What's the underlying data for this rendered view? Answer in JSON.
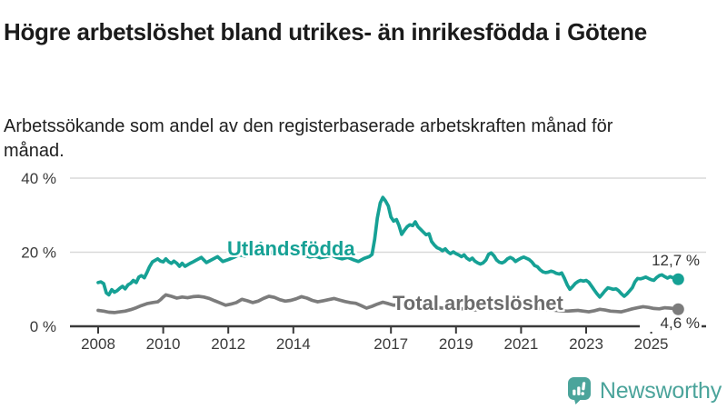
{
  "header": {
    "title": "Högre arbetslöshet bland utrikes- än inrikesfödda i Götene",
    "subtitle": "Arbetssökande som andel av den registerbaserade arbetskraften månad för månad."
  },
  "footer": {
    "brand": "Newsworthy",
    "logo_icon": "newsworthy-speech-bubble-bar-chart-icon",
    "brand_color": "#4ba49b"
  },
  "chart_data": {
    "type": "line",
    "title": "Högre arbetslöshet bland utrikes- än inrikesfödda i Götene",
    "subtitle": "Arbetssökande som andel av den registerbaserade arbetskraften månad för månad.",
    "grid": "horizontal-only",
    "legend_position": "inline-labels-on-lines",
    "x_axis": {
      "tick_years": [
        2008,
        2010,
        2012,
        2014,
        2017,
        2019,
        2021,
        2023,
        2025
      ],
      "tick_labels": [
        "2008",
        "2010",
        "2012",
        "2014",
        "2017",
        "2019",
        "2021",
        "2023",
        "2025"
      ],
      "range": [
        2007.15,
        2026.7
      ]
    },
    "y_axis": {
      "ticks": [
        0,
        20,
        40
      ],
      "tick_labels": [
        "0 %",
        "20 %",
        "40 %"
      ],
      "range": [
        0,
        40
      ],
      "unit": "%"
    },
    "series": [
      {
        "name": "Utlandsfödda",
        "color": "#16a195",
        "end_label": "12,7 %",
        "end_value": 12.7,
        "points": [
          [
            2008.0,
            11.8
          ],
          [
            2008.08,
            12.0
          ],
          [
            2008.17,
            11.5
          ],
          [
            2008.25,
            9.0
          ],
          [
            2008.33,
            8.5
          ],
          [
            2008.42,
            9.9
          ],
          [
            2008.5,
            9.2
          ],
          [
            2008.58,
            9.6
          ],
          [
            2008.67,
            10.3
          ],
          [
            2008.75,
            10.8
          ],
          [
            2008.83,
            10.1
          ],
          [
            2008.92,
            11.2
          ],
          [
            2009.0,
            11.6
          ],
          [
            2009.08,
            12.4
          ],
          [
            2009.17,
            11.8
          ],
          [
            2009.25,
            13.3
          ],
          [
            2009.33,
            13.7
          ],
          [
            2009.42,
            13.1
          ],
          [
            2009.5,
            14.5
          ],
          [
            2009.58,
            16.1
          ],
          [
            2009.67,
            17.4
          ],
          [
            2009.75,
            17.8
          ],
          [
            2009.83,
            18.2
          ],
          [
            2009.92,
            17.6
          ],
          [
            2010.0,
            17.4
          ],
          [
            2010.08,
            18.2
          ],
          [
            2010.17,
            17.4
          ],
          [
            2010.25,
            17.0
          ],
          [
            2010.33,
            17.6
          ],
          [
            2010.42,
            17.0
          ],
          [
            2010.5,
            16.2
          ],
          [
            2010.58,
            17.0
          ],
          [
            2010.67,
            16.2
          ],
          [
            2010.75,
            16.6
          ],
          [
            2010.83,
            17.0
          ],
          [
            2010.92,
            17.4
          ],
          [
            2011.0,
            17.8
          ],
          [
            2011.17,
            18.6
          ],
          [
            2011.33,
            17.2
          ],
          [
            2011.5,
            18.0
          ],
          [
            2011.67,
            18.8
          ],
          [
            2011.83,
            17.5
          ],
          [
            2012.0,
            18.0
          ],
          [
            2012.17,
            18.6
          ],
          [
            2012.33,
            19.3
          ],
          [
            2012.5,
            19.0
          ],
          [
            2012.67,
            19.4
          ],
          [
            2012.83,
            20.4
          ],
          [
            2013.0,
            22.4
          ],
          [
            2013.17,
            20.8
          ],
          [
            2013.33,
            19.8
          ],
          [
            2013.5,
            19.3
          ],
          [
            2013.67,
            19.6
          ],
          [
            2013.83,
            19.1
          ],
          [
            2014.0,
            19.4
          ],
          [
            2014.17,
            19.8
          ],
          [
            2014.33,
            19.2
          ],
          [
            2014.5,
            18.7
          ],
          [
            2014.67,
            19.0
          ],
          [
            2014.83,
            18.5
          ],
          [
            2015.0,
            18.8
          ],
          [
            2015.17,
            19.2
          ],
          [
            2015.33,
            18.6
          ],
          [
            2015.5,
            18.2
          ],
          [
            2015.67,
            18.6
          ],
          [
            2015.83,
            18.0
          ],
          [
            2016.0,
            17.5
          ],
          [
            2016.17,
            18.3
          ],
          [
            2016.33,
            18.8
          ],
          [
            2016.42,
            19.4
          ],
          [
            2016.5,
            23.5
          ],
          [
            2016.58,
            29.2
          ],
          [
            2016.67,
            33.3
          ],
          [
            2016.75,
            34.8
          ],
          [
            2016.83,
            33.9
          ],
          [
            2016.92,
            32.5
          ],
          [
            2017.0,
            29.5
          ],
          [
            2017.08,
            28.4
          ],
          [
            2017.17,
            28.8
          ],
          [
            2017.25,
            27.2
          ],
          [
            2017.33,
            24.8
          ],
          [
            2017.42,
            26.0
          ],
          [
            2017.5,
            26.9
          ],
          [
            2017.58,
            27.4
          ],
          [
            2017.67,
            27.2
          ],
          [
            2017.75,
            28.2
          ],
          [
            2017.83,
            26.9
          ],
          [
            2017.92,
            26.1
          ],
          [
            2018.0,
            25.4
          ],
          [
            2018.08,
            24.7
          ],
          [
            2018.17,
            25.0
          ],
          [
            2018.25,
            22.9
          ],
          [
            2018.33,
            22.0
          ],
          [
            2018.42,
            21.2
          ],
          [
            2018.5,
            20.9
          ],
          [
            2018.58,
            20.4
          ],
          [
            2018.67,
            20.9
          ],
          [
            2018.75,
            20.1
          ],
          [
            2018.83,
            19.6
          ],
          [
            2018.92,
            20.1
          ],
          [
            2019.0,
            19.6
          ],
          [
            2019.08,
            19.3
          ],
          [
            2019.17,
            18.8
          ],
          [
            2019.25,
            19.3
          ],
          [
            2019.33,
            18.4
          ],
          [
            2019.42,
            17.9
          ],
          [
            2019.5,
            18.4
          ],
          [
            2019.58,
            17.6
          ],
          [
            2019.67,
            17.1
          ],
          [
            2019.75,
            16.8
          ],
          [
            2019.83,
            17.1
          ],
          [
            2019.92,
            17.9
          ],
          [
            2020.0,
            19.4
          ],
          [
            2020.08,
            19.8
          ],
          [
            2020.17,
            19.0
          ],
          [
            2020.25,
            17.9
          ],
          [
            2020.33,
            17.3
          ],
          [
            2020.42,
            17.1
          ],
          [
            2020.5,
            17.5
          ],
          [
            2020.58,
            18.2
          ],
          [
            2020.67,
            18.6
          ],
          [
            2020.75,
            18.2
          ],
          [
            2020.83,
            17.5
          ],
          [
            2020.92,
            18.0
          ],
          [
            2021.0,
            18.4
          ],
          [
            2021.08,
            18.7
          ],
          [
            2021.25,
            18.0
          ],
          [
            2021.33,
            17.4
          ],
          [
            2021.42,
            16.4
          ],
          [
            2021.5,
            16.1
          ],
          [
            2021.58,
            15.3
          ],
          [
            2021.67,
            14.7
          ],
          [
            2021.75,
            14.5
          ],
          [
            2021.83,
            14.6
          ],
          [
            2021.92,
            14.9
          ],
          [
            2022.0,
            14.7
          ],
          [
            2022.08,
            14.3
          ],
          [
            2022.17,
            14.1
          ],
          [
            2022.25,
            14.4
          ],
          [
            2022.33,
            13.0
          ],
          [
            2022.42,
            11.2
          ],
          [
            2022.5,
            10.0
          ],
          [
            2022.58,
            10.7
          ],
          [
            2022.67,
            11.6
          ],
          [
            2022.75,
            12.1
          ],
          [
            2022.83,
            12.4
          ],
          [
            2022.92,
            12.2
          ],
          [
            2023.0,
            12.4
          ],
          [
            2023.08,
            11.9
          ],
          [
            2023.17,
            10.8
          ],
          [
            2023.25,
            9.8
          ],
          [
            2023.33,
            8.8
          ],
          [
            2023.42,
            7.9
          ],
          [
            2023.5,
            8.7
          ],
          [
            2023.58,
            9.6
          ],
          [
            2023.67,
            10.4
          ],
          [
            2023.75,
            10.2
          ],
          [
            2023.83,
            10.0
          ],
          [
            2023.92,
            10.1
          ],
          [
            2024.0,
            9.6
          ],
          [
            2024.08,
            8.8
          ],
          [
            2024.17,
            8.1
          ],
          [
            2024.25,
            8.7
          ],
          [
            2024.33,
            9.5
          ],
          [
            2024.42,
            10.4
          ],
          [
            2024.5,
            12.0
          ],
          [
            2024.58,
            12.9
          ],
          [
            2024.67,
            12.8
          ],
          [
            2024.75,
            13.0
          ],
          [
            2024.83,
            13.3
          ],
          [
            2024.92,
            12.9
          ],
          [
            2025.0,
            12.6
          ],
          [
            2025.08,
            12.4
          ],
          [
            2025.17,
            13.2
          ],
          [
            2025.25,
            13.7
          ],
          [
            2025.33,
            13.9
          ],
          [
            2025.42,
            13.4
          ],
          [
            2025.5,
            13.0
          ],
          [
            2025.58,
            13.4
          ],
          [
            2025.67,
            13.1
          ],
          [
            2025.75,
            12.8
          ],
          [
            2025.83,
            12.7
          ]
        ]
      },
      {
        "name": "Total arbetslöshet",
        "color": "#7c7c7c",
        "end_label": "4,6 %",
        "end_value": 4.6,
        "points": [
          [
            2008.0,
            4.3
          ],
          [
            2008.17,
            4.1
          ],
          [
            2008.33,
            3.8
          ],
          [
            2008.5,
            3.7
          ],
          [
            2008.67,
            3.9
          ],
          [
            2008.83,
            4.1
          ],
          [
            2009.0,
            4.5
          ],
          [
            2009.17,
            5.0
          ],
          [
            2009.33,
            5.6
          ],
          [
            2009.5,
            6.1
          ],
          [
            2009.67,
            6.4
          ],
          [
            2009.83,
            6.6
          ],
          [
            2009.92,
            7.2
          ],
          [
            2010.0,
            7.9
          ],
          [
            2010.08,
            8.5
          ],
          [
            2010.25,
            8.1
          ],
          [
            2010.42,
            7.6
          ],
          [
            2010.58,
            7.9
          ],
          [
            2010.75,
            7.7
          ],
          [
            2010.92,
            8.0
          ],
          [
            2011.08,
            8.1
          ],
          [
            2011.25,
            7.9
          ],
          [
            2011.42,
            7.5
          ],
          [
            2011.58,
            6.9
          ],
          [
            2011.75,
            6.3
          ],
          [
            2011.92,
            5.7
          ],
          [
            2012.08,
            6.0
          ],
          [
            2012.25,
            6.4
          ],
          [
            2012.42,
            7.3
          ],
          [
            2012.58,
            6.9
          ],
          [
            2012.75,
            6.4
          ],
          [
            2012.92,
            6.8
          ],
          [
            2013.08,
            7.5
          ],
          [
            2013.25,
            8.1
          ],
          [
            2013.42,
            7.8
          ],
          [
            2013.58,
            7.2
          ],
          [
            2013.75,
            6.8
          ],
          [
            2013.92,
            7.0
          ],
          [
            2014.08,
            7.4
          ],
          [
            2014.25,
            8.0
          ],
          [
            2014.42,
            7.6
          ],
          [
            2014.58,
            7.0
          ],
          [
            2014.75,
            6.6
          ],
          [
            2014.92,
            6.9
          ],
          [
            2015.08,
            7.2
          ],
          [
            2015.25,
            7.5
          ],
          [
            2015.42,
            7.1
          ],
          [
            2015.58,
            6.7
          ],
          [
            2015.75,
            6.4
          ],
          [
            2015.92,
            6.2
          ],
          [
            2016.08,
            5.6
          ],
          [
            2016.25,
            4.9
          ],
          [
            2016.42,
            5.4
          ],
          [
            2016.58,
            6.0
          ],
          [
            2016.75,
            6.5
          ],
          [
            2016.92,
            6.1
          ],
          [
            2017.08,
            5.7
          ],
          [
            2017.25,
            5.9
          ],
          [
            2017.42,
            6.2
          ],
          [
            2017.58,
            5.8
          ],
          [
            2017.75,
            5.5
          ],
          [
            2017.92,
            5.7
          ],
          [
            2018.08,
            5.3
          ],
          [
            2018.25,
            5.5
          ],
          [
            2018.42,
            5.1
          ],
          [
            2018.58,
            4.9
          ],
          [
            2018.75,
            5.1
          ],
          [
            2018.92,
            4.8
          ],
          [
            2019.08,
            4.6
          ],
          [
            2019.25,
            4.8
          ],
          [
            2019.42,
            4.5
          ],
          [
            2019.58,
            4.4
          ],
          [
            2019.75,
            4.6
          ],
          [
            2019.92,
            4.8
          ],
          [
            2020.08,
            5.4
          ],
          [
            2020.25,
            6.2
          ],
          [
            2020.42,
            6.5
          ],
          [
            2020.58,
            6.3
          ],
          [
            2020.75,
            6.0
          ],
          [
            2020.92,
            5.8
          ],
          [
            2021.08,
            5.6
          ],
          [
            2021.25,
            5.3
          ],
          [
            2021.42,
            5.0
          ],
          [
            2021.58,
            4.8
          ],
          [
            2021.75,
            4.6
          ],
          [
            2021.92,
            4.5
          ],
          [
            2022.08,
            4.3
          ],
          [
            2022.25,
            4.2
          ],
          [
            2022.42,
            4.1
          ],
          [
            2022.58,
            4.2
          ],
          [
            2022.75,
            4.3
          ],
          [
            2022.92,
            4.1
          ],
          [
            2023.08,
            3.9
          ],
          [
            2023.25,
            4.2
          ],
          [
            2023.42,
            4.6
          ],
          [
            2023.58,
            4.4
          ],
          [
            2023.75,
            4.1
          ],
          [
            2023.92,
            4.0
          ],
          [
            2024.08,
            3.9
          ],
          [
            2024.25,
            4.3
          ],
          [
            2024.42,
            4.7
          ],
          [
            2024.58,
            5.0
          ],
          [
            2024.75,
            5.3
          ],
          [
            2024.92,
            5.1
          ],
          [
            2025.08,
            4.8
          ],
          [
            2025.25,
            4.7
          ],
          [
            2025.42,
            5.0
          ],
          [
            2025.58,
            4.9
          ],
          [
            2025.75,
            4.7
          ],
          [
            2025.83,
            4.6
          ]
        ]
      }
    ]
  }
}
